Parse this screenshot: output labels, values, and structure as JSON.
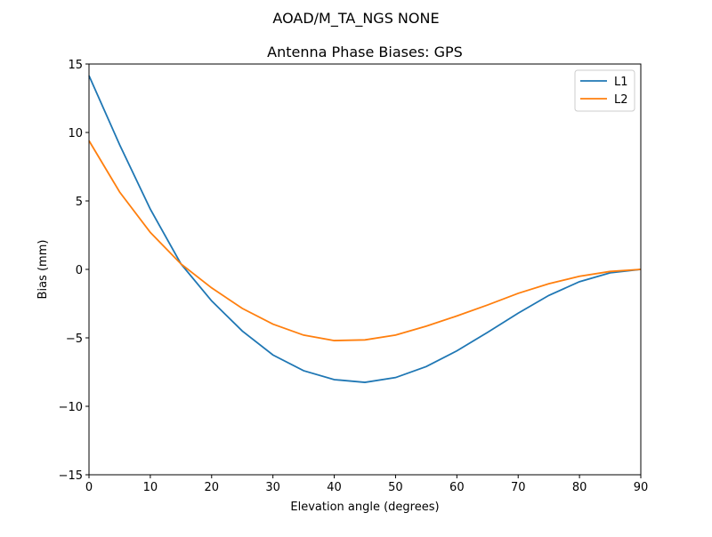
{
  "chart_data": {
    "type": "line",
    "suptitle": "AOAD/M_TA_NGS   NONE",
    "title": "Antenna Phase Biases: GPS",
    "xlabel": "Elevation angle (degrees)",
    "ylabel": "Bias (mm)",
    "xlim": [
      0,
      90
    ],
    "ylim": [
      -15,
      15
    ],
    "xticks": [
      0,
      10,
      20,
      30,
      40,
      50,
      60,
      70,
      80,
      90
    ],
    "yticks": [
      -15,
      -10,
      -5,
      0,
      5,
      10,
      15
    ],
    "ytick_labels": [
      "−15",
      "−10",
      "−5",
      "0",
      "5",
      "10",
      "15"
    ],
    "grid": false,
    "legend_position": "top-right",
    "x": [
      0,
      5,
      10,
      15,
      20,
      25,
      30,
      35,
      40,
      45,
      50,
      55,
      60,
      65,
      70,
      75,
      80,
      85,
      90
    ],
    "series": [
      {
        "name": "L1",
        "color": "#1f77b4",
        "values": [
          14.15,
          9.1,
          4.4,
          0.4,
          -2.3,
          -4.5,
          -6.25,
          -7.4,
          -8.05,
          -8.25,
          -7.9,
          -7.1,
          -5.95,
          -4.6,
          -3.2,
          -1.9,
          -0.9,
          -0.25,
          0
        ]
      },
      {
        "name": "L2",
        "color": "#ff7f0e",
        "values": [
          9.4,
          5.65,
          2.7,
          0.4,
          -1.35,
          -2.85,
          -4.0,
          -4.8,
          -5.2,
          -5.15,
          -4.8,
          -4.15,
          -3.4,
          -2.6,
          -1.75,
          -1.05,
          -0.5,
          -0.15,
          0
        ]
      }
    ]
  }
}
